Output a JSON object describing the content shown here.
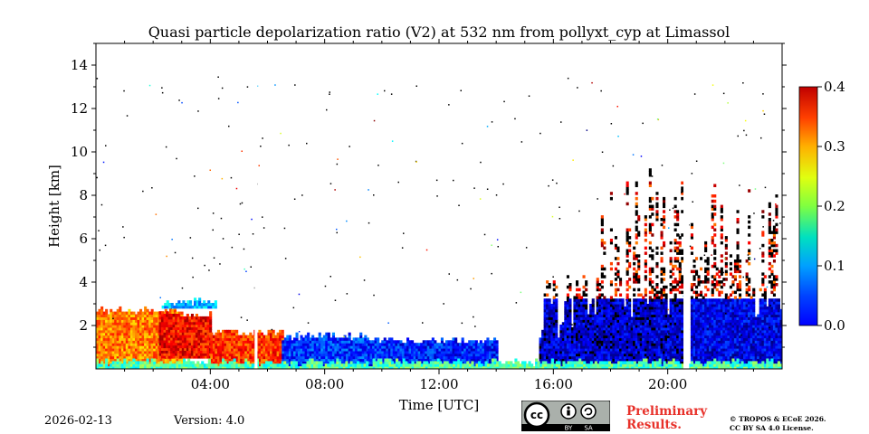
{
  "chart_data": {
    "type": "heatmap",
    "title": "Quasi particle depolarization ratio (V2) at 532 nm from pollyxt_cyp at Limassol",
    "xlabel": "Time [UTC]",
    "ylabel": "Height [km]",
    "xlim_hours": [
      0,
      24
    ],
    "ylim_km": [
      0,
      15
    ],
    "x_ticks": [
      {
        "value": 4,
        "label": "04:00"
      },
      {
        "value": 8,
        "label": "08:00"
      },
      {
        "value": 12,
        "label": "12:00"
      },
      {
        "value": 16,
        "label": "16:00"
      },
      {
        "value": 20,
        "label": "20:00"
      }
    ],
    "y_ticks": [
      {
        "value": 2,
        "label": "2"
      },
      {
        "value": 4,
        "label": "4"
      },
      {
        "value": 6,
        "label": "6"
      },
      {
        "value": 8,
        "label": "8"
      },
      {
        "value": 10,
        "label": "10"
      },
      {
        "value": 12,
        "label": "12"
      },
      {
        "value": 14,
        "label": "14"
      }
    ],
    "colorbar": {
      "colormap": "jet",
      "range": [
        0.0,
        0.4
      ],
      "ticks": [
        {
          "value": 0.0,
          "label": "0.0"
        },
        {
          "value": 0.1,
          "label": "0.1"
        },
        {
          "value": 0.2,
          "label": "0.2"
        },
        {
          "value": 0.3,
          "label": "0.3"
        },
        {
          "value": 0.4,
          "label": "0.4"
        }
      ]
    },
    "regions": [
      {
        "name": "dust-layer-night",
        "t_start": 0.0,
        "t_end": 3.0,
        "h_low": 0.0,
        "h_high": 2.8,
        "value": 0.3
      },
      {
        "name": "dust-layer-core",
        "t_start": 2.2,
        "t_end": 4.0,
        "h_low": 0.5,
        "h_high": 2.6,
        "value": 0.35
      },
      {
        "name": "elevated-thin-layer",
        "t_start": 2.3,
        "t_end": 4.2,
        "h_low": 2.8,
        "h_high": 3.2,
        "value": 0.12
      },
      {
        "name": "boundary-layer-morning",
        "t_start": 4.0,
        "t_end": 6.5,
        "h_low": 0.0,
        "h_high": 1.8,
        "value": 0.33
      },
      {
        "name": "boundary-layer-day",
        "t_start": 6.5,
        "t_end": 9.5,
        "h_low": 0.0,
        "h_high": 1.6,
        "value": 0.07
      },
      {
        "name": "boundary-layer-afternoon",
        "t_start": 9.5,
        "t_end": 14.0,
        "h_low": 0.0,
        "h_high": 1.4,
        "value": 0.06
      },
      {
        "name": "cloud-convection-1",
        "t_start": 15.5,
        "t_end": 17.5,
        "h_low": 0.0,
        "h_high": 4.5,
        "value": 0.03
      },
      {
        "name": "cloud-convection-2",
        "t_start": 17.5,
        "t_end": 20.5,
        "h_low": 0.0,
        "h_high": 9.5,
        "value": 0.03
      },
      {
        "name": "cloud-convection-3",
        "t_start": 20.8,
        "t_end": 24.0,
        "h_low": 0.0,
        "h_high": 8.5,
        "value": 0.04
      },
      {
        "name": "surface-layer",
        "t_start": 0.0,
        "t_end": 24.0,
        "h_low": 0.0,
        "h_high": 0.4,
        "value": 0.18
      }
    ]
  },
  "footer": {
    "date": "2026-02-13",
    "version": "Version: 4.0",
    "license_badge_cc": "cc",
    "license_badge_by": "BY",
    "license_badge_sa": "SA",
    "preliminary_line1": "Preliminary",
    "preliminary_line2": "Results.",
    "copyright_line1": "© TROPOS & ECoE 2026.",
    "copyright_line2": "CC BY SA 4.0 License."
  },
  "colors": {
    "prelim": "#e8312a",
    "badge_bg": "#aab0ab"
  }
}
